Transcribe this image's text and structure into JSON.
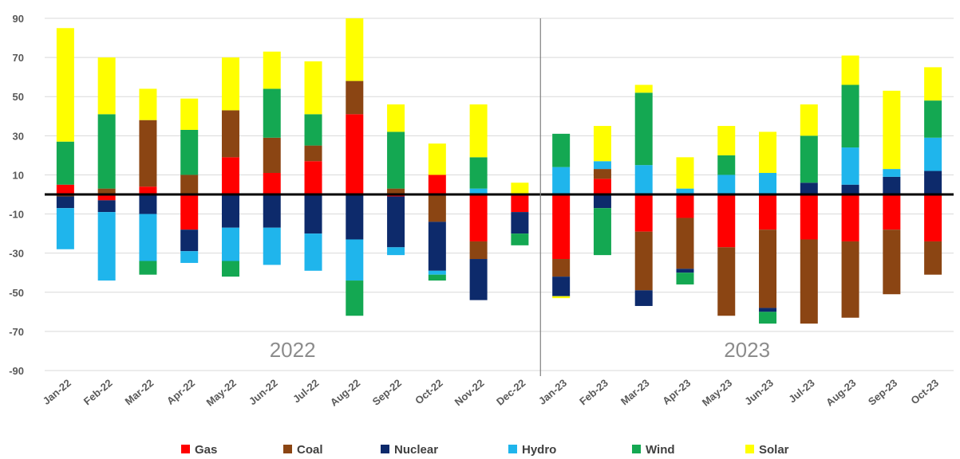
{
  "chart_data": {
    "type": "bar",
    "stacked": true,
    "title": "",
    "xlabel": "",
    "ylabel": "",
    "ylim": [
      -90,
      90
    ],
    "yticks": [
      90,
      70,
      50,
      30,
      10,
      -10,
      -30,
      -50,
      -70,
      -90
    ],
    "grid": true,
    "legend_position": "bottom",
    "categories": [
      "Jan-22",
      "Feb-22",
      "Mar-22",
      "Apr-22",
      "May-22",
      "Jun-22",
      "Jul-22",
      "Aug-22",
      "Sep-22",
      "Oct-22",
      "Nov-22",
      "Dec-22",
      "Jan-23",
      "Feb-23",
      "Mar-23",
      "Apr-23",
      "May-23",
      "Jun-23",
      "Jul-23",
      "Aug-23",
      "Sep-23",
      "Oct-23"
    ],
    "annotations": [
      {
        "text": "2022",
        "range": [
          "Jan-22",
          "Dec-22"
        ]
      },
      {
        "text": "2023",
        "range": [
          "Jan-23",
          "Oct-23"
        ]
      }
    ],
    "series": [
      {
        "name": "Gas",
        "color": "#ff0000",
        "values": [
          5,
          -3,
          4,
          -18,
          19,
          11,
          17,
          41,
          -1,
          10,
          -24,
          -9,
          -33,
          8,
          -19,
          -12,
          -27,
          -18,
          -23,
          -24,
          -18,
          -24
        ]
      },
      {
        "name": "Coal",
        "color": "#8b4513",
        "values": [
          -1,
          3,
          34,
          10,
          24,
          18,
          8,
          17,
          3,
          -14,
          -9,
          0,
          -9,
          5,
          -30,
          -26,
          -35,
          -40,
          -43,
          -39,
          -33,
          -17
        ]
      },
      {
        "name": "Nuclear",
        "color": "#0d2a6b",
        "values": [
          -6,
          -6,
          -10,
          -11,
          -17,
          -17,
          -20,
          -23,
          -26,
          -25,
          -21,
          -11,
          -10,
          -7,
          -8,
          -2,
          0,
          -2,
          6,
          5,
          9,
          12
        ]
      },
      {
        "name": "Hydro",
        "color": "#1fb5ec",
        "values": [
          -21,
          -35,
          -24,
          -6,
          -17,
          -19,
          -19,
          -21,
          -4,
          -2,
          3,
          0,
          14,
          4,
          15,
          3,
          10,
          11,
          0,
          19,
          4,
          17
        ]
      },
      {
        "name": "Wind",
        "color": "#14a852",
        "values": [
          22,
          38,
          -7,
          23,
          -8,
          25,
          16,
          -18,
          29,
          -3,
          16,
          -6,
          17,
          -24,
          37,
          -6,
          10,
          -6,
          24,
          32,
          0,
          19
        ]
      },
      {
        "name": "Solar",
        "color": "#ffff00",
        "values": [
          58,
          29,
          16,
          16,
          27,
          19,
          27,
          32,
          14,
          16,
          27,
          6,
          -1,
          18,
          4,
          16,
          15,
          21,
          16,
          15,
          40,
          17
        ]
      }
    ]
  }
}
